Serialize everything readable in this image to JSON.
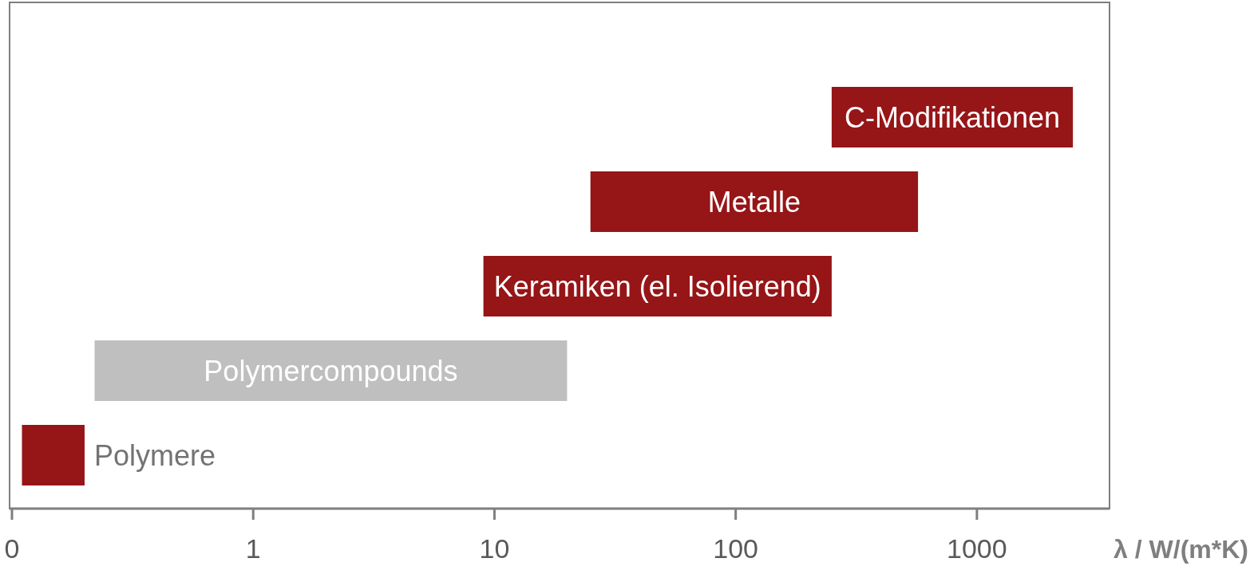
{
  "chart_data": {
    "type": "bar",
    "orientation": "horizontal",
    "log": "x",
    "xlabel": "λ / W/(m*K)",
    "categories": [
      "C-Modifikationen",
      "Metalle",
      "Keramiken (el. Isolierend)",
      "Polymercompounds",
      "Polymere"
    ],
    "base": [
      250,
      25,
      9,
      0.22,
      0.11
    ],
    "values": [
      2250,
      545,
      241,
      19.78,
      0.09
    ],
    "colors": [
      "#961517",
      "#961517",
      "#961517",
      "#bfbfbf",
      "#961517"
    ],
    "xlim": [
      0.1,
      3600
    ],
    "xticks": [
      {
        "value": 0.1,
        "label": "0"
      },
      1,
      10,
      100,
      1000
    ]
  }
}
